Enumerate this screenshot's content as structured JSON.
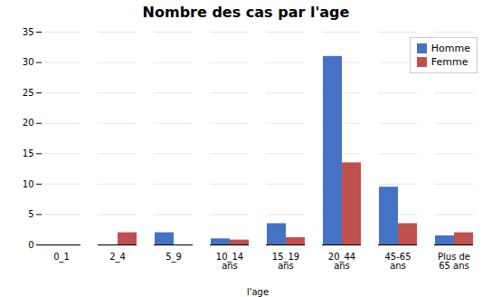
{
  "chart_data": {
    "type": "bar",
    "title": "Nombre des cas par l'age",
    "xlabel": "l'age",
    "categories": [
      "0_1",
      "2_4",
      "5_9",
      "10_14\nans",
      "15_19\nans",
      "20_44\nans",
      "45-65\nans",
      "Plus de\n65 ans"
    ],
    "series": [
      {
        "name": "Homme",
        "color": "#4472C4",
        "values": [
          0,
          0,
          2,
          1,
          3.5,
          31,
          9.5,
          1.5
        ]
      },
      {
        "name": "Femme",
        "color": "#C0504D",
        "values": [
          0,
          2,
          0,
          0.8,
          1.2,
          13.5,
          3.5,
          2
        ]
      }
    ],
    "ylim": [
      0,
      35
    ],
    "yticks": [
      0,
      5,
      10,
      15,
      20,
      25,
      30,
      35
    ],
    "grid": true,
    "legend": "upper right"
  }
}
